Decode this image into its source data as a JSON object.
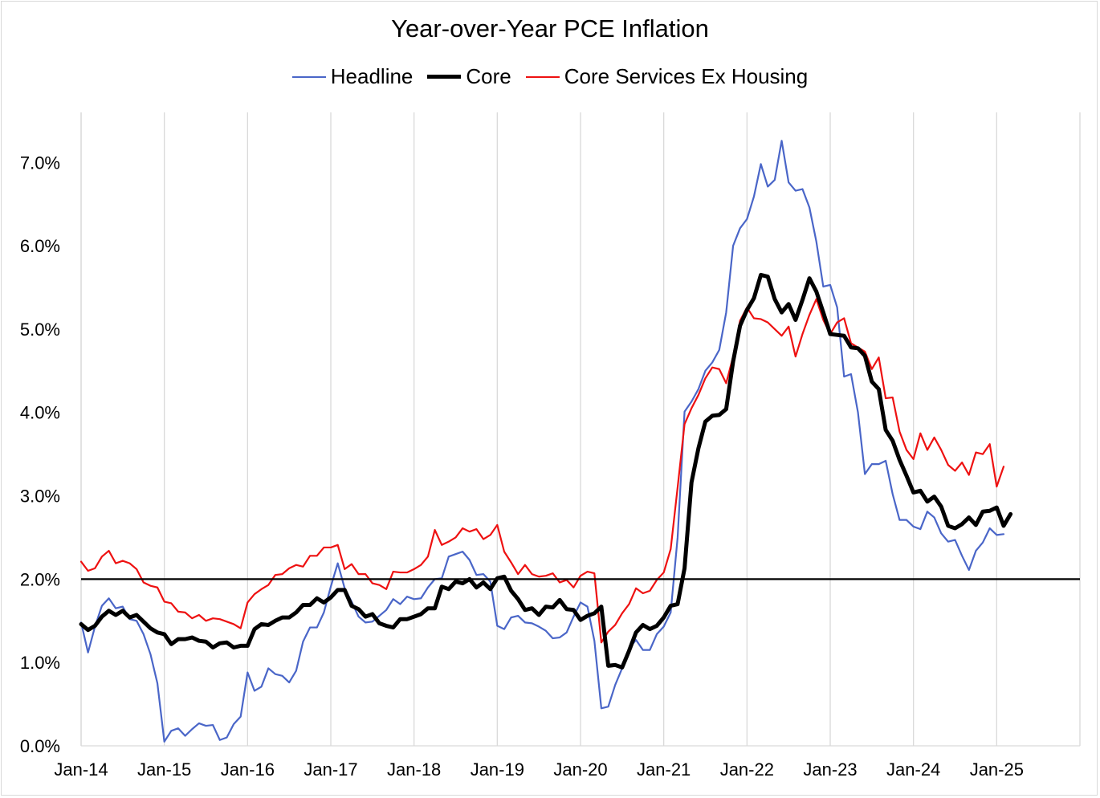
{
  "chart_data": {
    "type": "line",
    "title": "Year-over-Year PCE Inflation",
    "xlabel": "",
    "ylabel": "",
    "x_start": "2014-01",
    "x_ticks": [
      "Jan-14",
      "Jan-15",
      "Jan-16",
      "Jan-17",
      "Jan-18",
      "Jan-19",
      "Jan-20",
      "Jan-21",
      "Jan-22",
      "Jan-23",
      "Jan-24",
      "Jan-25"
    ],
    "xlim": [
      "2014-01",
      "2026-01"
    ],
    "y_ticks": [
      "0.0%",
      "1.0%",
      "2.0%",
      "3.0%",
      "4.0%",
      "5.0%",
      "6.0%",
      "7.0%"
    ],
    "ylim": [
      0,
      7.6
    ],
    "grid": "vertical",
    "legend_position": "top",
    "reference_line": 2.0,
    "series": [
      {
        "name": "Headline",
        "color": "#4a66c8",
        "values": [
          1.48,
          1.12,
          1.43,
          1.68,
          1.77,
          1.65,
          1.67,
          1.52,
          1.5,
          1.34,
          1.1,
          0.75,
          0.05,
          0.18,
          0.21,
          0.12,
          0.2,
          0.27,
          0.24,
          0.25,
          0.07,
          0.1,
          0.26,
          0.35,
          0.88,
          0.66,
          0.71,
          0.93,
          0.86,
          0.84,
          0.76,
          0.9,
          1.25,
          1.42,
          1.42,
          1.6,
          1.91,
          2.19,
          1.89,
          1.73,
          1.55,
          1.48,
          1.49,
          1.56,
          1.63,
          1.76,
          1.7,
          1.79,
          1.76,
          1.77,
          1.9,
          2.0,
          2.01,
          2.27,
          2.3,
          2.33,
          2.23,
          2.05,
          2.06,
          1.97,
          1.44,
          1.4,
          1.54,
          1.56,
          1.48,
          1.47,
          1.43,
          1.38,
          1.29,
          1.3,
          1.36,
          1.55,
          1.72,
          1.67,
          1.26,
          0.45,
          0.47,
          0.73,
          0.93,
          1.17,
          1.27,
          1.15,
          1.15,
          1.34,
          1.43,
          1.6,
          2.5,
          4.01,
          4.13,
          4.28,
          4.5,
          4.6,
          4.75,
          5.2,
          6.0,
          6.21,
          6.32,
          6.59,
          6.98,
          6.71,
          6.79,
          7.26,
          6.76,
          6.66,
          6.68,
          6.46,
          6.05,
          5.51,
          5.53,
          5.26,
          4.43,
          4.46,
          4.0,
          3.26,
          3.38,
          3.38,
          3.42,
          3.02,
          2.71,
          2.71,
          2.63,
          2.6,
          2.81,
          2.74,
          2.55,
          2.45,
          2.47,
          2.28,
          2.11,
          2.34,
          2.44,
          2.61,
          2.53,
          2.54
        ]
      },
      {
        "name": "Core",
        "color": "#000000",
        "values": [
          1.46,
          1.39,
          1.44,
          1.55,
          1.62,
          1.57,
          1.62,
          1.54,
          1.57,
          1.49,
          1.41,
          1.36,
          1.34,
          1.22,
          1.28,
          1.28,
          1.3,
          1.26,
          1.25,
          1.18,
          1.23,
          1.24,
          1.18,
          1.2,
          1.2,
          1.4,
          1.46,
          1.45,
          1.5,
          1.54,
          1.54,
          1.6,
          1.69,
          1.69,
          1.77,
          1.72,
          1.78,
          1.87,
          1.87,
          1.68,
          1.64,
          1.55,
          1.58,
          1.47,
          1.44,
          1.42,
          1.52,
          1.52,
          1.55,
          1.58,
          1.65,
          1.65,
          1.91,
          1.88,
          1.97,
          1.95,
          2.0,
          1.9,
          1.96,
          1.88,
          2.01,
          2.03,
          1.86,
          1.76,
          1.63,
          1.65,
          1.57,
          1.67,
          1.66,
          1.75,
          1.64,
          1.63,
          1.51,
          1.56,
          1.59,
          1.67,
          0.96,
          0.97,
          0.94,
          1.14,
          1.36,
          1.45,
          1.4,
          1.44,
          1.54,
          1.68,
          1.7,
          2.13,
          3.16,
          3.57,
          3.89,
          3.96,
          3.97,
          4.04,
          4.61,
          5.04,
          5.23,
          5.37,
          5.65,
          5.63,
          5.36,
          5.2,
          5.3,
          5.11,
          5.35,
          5.61,
          5.45,
          5.2,
          4.94,
          4.93,
          4.92,
          4.78,
          4.77,
          4.68,
          4.37,
          4.28,
          3.79,
          3.66,
          3.43,
          3.24,
          3.04,
          3.06,
          2.93,
          2.99,
          2.87,
          2.64,
          2.61,
          2.66,
          2.74,
          2.65,
          2.81,
          2.82,
          2.86,
          2.64,
          2.78
        ]
      },
      {
        "name": "Core Services Ex Housing",
        "color": "#ee1111",
        "values": [
          2.21,
          2.1,
          2.13,
          2.27,
          2.34,
          2.19,
          2.22,
          2.19,
          2.12,
          1.96,
          1.92,
          1.9,
          1.73,
          1.71,
          1.61,
          1.6,
          1.53,
          1.57,
          1.5,
          1.53,
          1.52,
          1.49,
          1.46,
          1.41,
          1.72,
          1.82,
          1.88,
          1.93,
          2.05,
          2.06,
          2.13,
          2.17,
          2.15,
          2.28,
          2.28,
          2.38,
          2.38,
          2.41,
          2.12,
          2.18,
          2.06,
          2.06,
          1.95,
          1.93,
          1.88,
          2.09,
          2.08,
          2.08,
          2.12,
          2.17,
          2.27,
          2.59,
          2.41,
          2.45,
          2.5,
          2.61,
          2.57,
          2.6,
          2.48,
          2.53,
          2.65,
          2.33,
          2.2,
          2.06,
          2.17,
          2.06,
          2.03,
          2.04,
          2.07,
          1.96,
          1.99,
          1.9,
          2.04,
          2.09,
          2.07,
          1.24,
          1.37,
          1.45,
          1.59,
          1.7,
          1.89,
          1.83,
          1.86,
          1.99,
          2.08,
          2.36,
          3.1,
          3.86,
          4.05,
          4.21,
          4.41,
          4.54,
          4.52,
          4.35,
          4.67,
          5.1,
          5.26,
          5.13,
          5.12,
          5.08,
          5.0,
          4.92,
          5.03,
          4.67,
          4.94,
          5.17,
          5.36,
          5.11,
          4.94,
          5.08,
          5.13,
          4.83,
          4.78,
          4.73,
          4.52,
          4.66,
          4.17,
          4.18,
          3.77,
          3.55,
          3.44,
          3.75,
          3.55,
          3.7,
          3.55,
          3.37,
          3.3,
          3.4,
          3.25,
          3.52,
          3.5,
          3.62,
          3.11,
          3.35
        ]
      }
    ]
  }
}
